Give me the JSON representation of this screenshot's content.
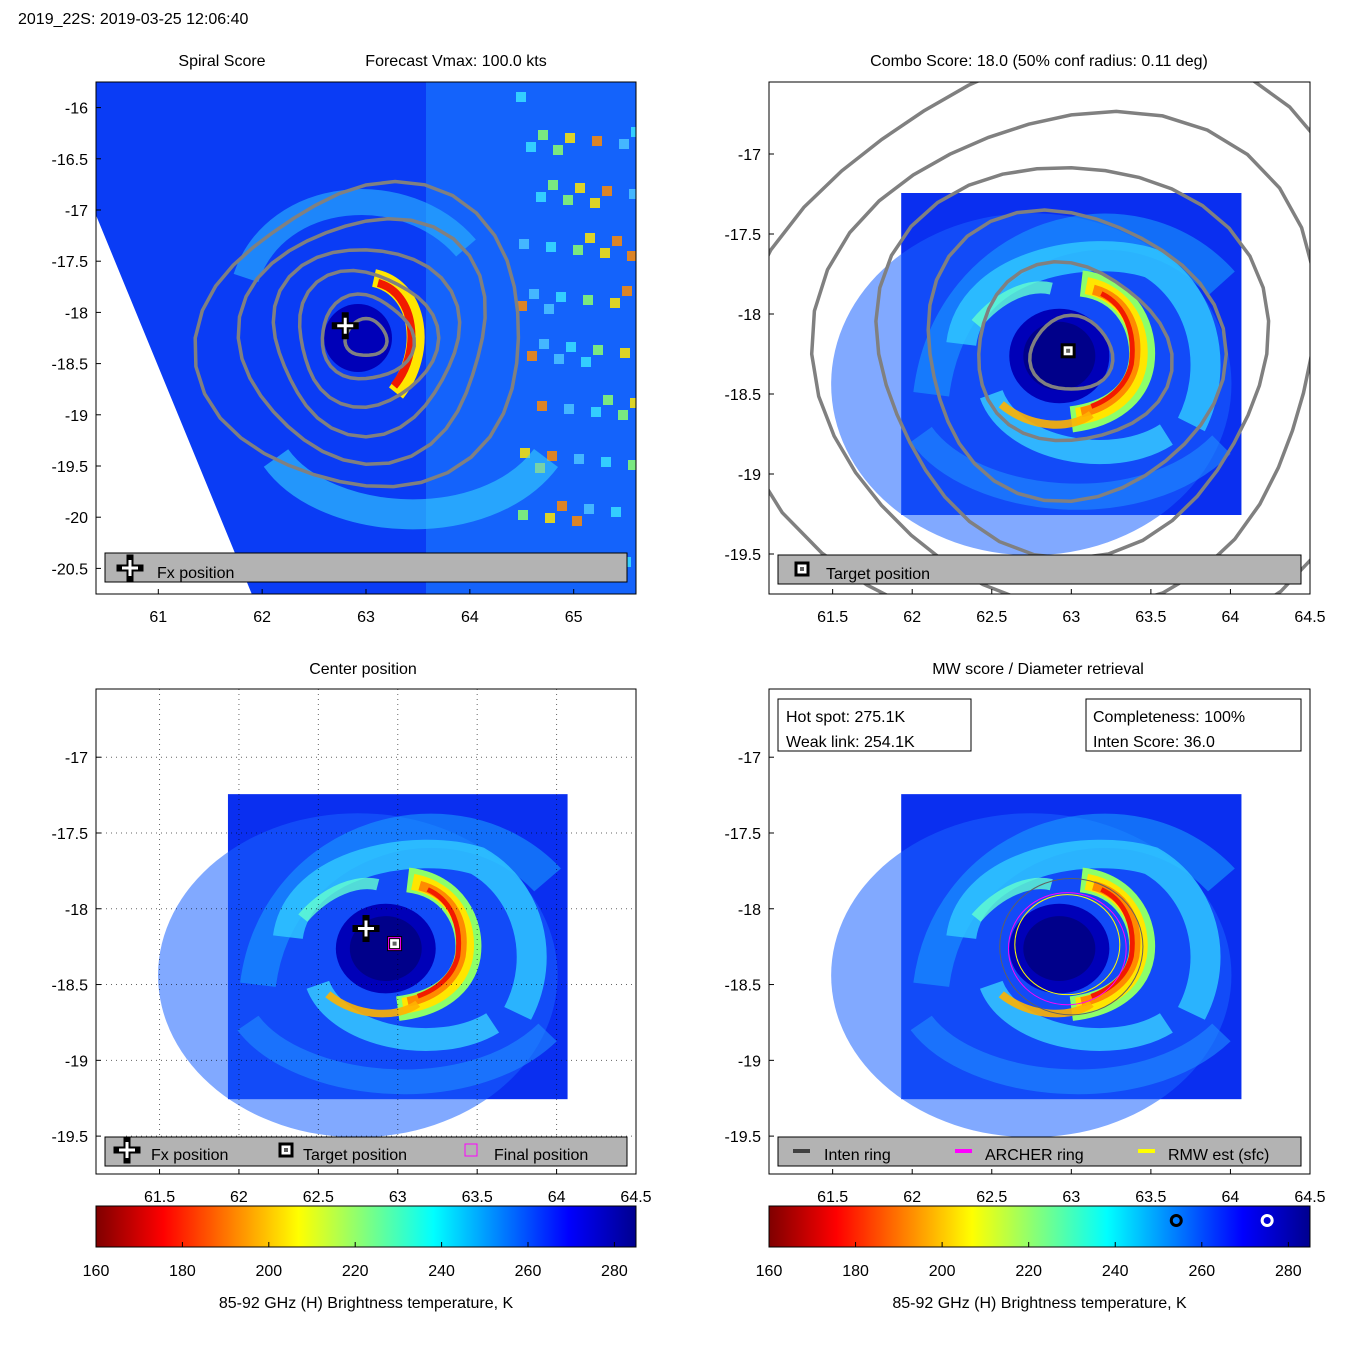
{
  "header": {
    "storm_time": "2019_22S: 2019-03-25 12:06:40"
  },
  "colors": {
    "jet": [
      "#7f0000",
      "#ff0000",
      "#ff7f00",
      "#ffff00",
      "#7fff7f",
      "#00ffff",
      "#007fff",
      "#0000ff",
      "#00008f"
    ],
    "contour": "#808080",
    "legend_bg": "#b3b3b3",
    "archer_ring": "#ff00ff",
    "rmw_ring": "#ffff00",
    "inten_ring": "#404040"
  },
  "panels": {
    "spiral": {
      "title_left": "Spiral Score",
      "title_right": "Forecast Vmax: 100.0 kts",
      "legend": [
        "Fx position"
      ]
    },
    "combo": {
      "title": "Combo Score: 18.0  (50% conf radius: 0.11 deg)",
      "legend": [
        "Target position"
      ]
    },
    "center": {
      "title": "Center position",
      "legend": [
        "Fx position",
        "Target position",
        "Final position"
      ]
    },
    "mw": {
      "title": "MW score / Diameter retrieval",
      "hot_spot": "Hot spot: 275.1K",
      "weak_link": "Weak link: 254.1K",
      "completeness": "Completeness: 100%",
      "inten_score": "Inten Score: 36.0",
      "legend": [
        "Inten ring",
        "ARCHER ring",
        "RMW est (sfc)"
      ]
    }
  },
  "colorbar": {
    "label": "85-92 GHz (H) Brightness temperature, K",
    "ticks": [
      "160",
      "180",
      "200",
      "220",
      "240",
      "260",
      "280"
    ],
    "range": [
      160,
      285
    ],
    "markers": {
      "weak_link_K": 254.1,
      "hot_spot_K": 275.1
    }
  },
  "chart_data": [
    {
      "type": "heatmap",
      "title": "Spiral Score",
      "subtitle": "Forecast Vmax: 100.0 kts",
      "xlim": [
        60.4,
        65.6
      ],
      "ylim": [
        -20.75,
        -15.75
      ],
      "xticks": [
        "61",
        "62",
        "63",
        "64",
        "65"
      ],
      "yticks": [
        "-16",
        "-16.5",
        "-17",
        "-17.5",
        "-18",
        "-18.5",
        "-19",
        "-19.5",
        "-20",
        "-20.5"
      ],
      "eye_lon": 63.0,
      "eye_lat": -18.25,
      "fx_position": {
        "lon": 62.8,
        "lat": -18.13
      },
      "legend": [
        "Fx position"
      ]
    },
    {
      "type": "heatmap",
      "title": "Combo Score: 18.0  (50% conf radius: 0.11 deg)",
      "xlim": [
        61.1,
        64.5
      ],
      "ylim": [
        -19.75,
        -16.55
      ],
      "xticks": [
        "61.5",
        "62",
        "62.5",
        "63",
        "63.5",
        "64",
        "64.5"
      ],
      "yticks": [
        "-17",
        "-17.5",
        "-18",
        "-18.5",
        "-19",
        "-19.5"
      ],
      "eye_lon": 63.0,
      "eye_lat": -18.25,
      "target_position": {
        "lon": 62.98,
        "lat": -18.23
      },
      "legend": [
        "Target position"
      ]
    },
    {
      "type": "heatmap",
      "title": "Center position",
      "xlim": [
        61.1,
        64.5
      ],
      "ylim": [
        -19.75,
        -16.55
      ],
      "xticks": [
        "61.5",
        "62",
        "62.5",
        "63",
        "63.5",
        "64",
        "64.5"
      ],
      "yticks": [
        "-17",
        "-17.5",
        "-18",
        "-18.5",
        "-19",
        "-19.5"
      ],
      "eye_lon": 63.0,
      "eye_lat": -18.25,
      "fx_position": {
        "lon": 62.8,
        "lat": -18.13
      },
      "target_position": {
        "lon": 62.98,
        "lat": -18.23
      },
      "final_position": {
        "lon": 62.98,
        "lat": -18.23
      },
      "legend": [
        "Fx position",
        "Target position",
        "Final position"
      ]
    },
    {
      "type": "heatmap",
      "title": "MW score / Diameter retrieval",
      "xlim": [
        61.1,
        64.5
      ],
      "ylim": [
        -19.75,
        -16.55
      ],
      "xticks": [
        "61.5",
        "62",
        "62.5",
        "63",
        "63.5",
        "64",
        "64.5"
      ],
      "yticks": [
        "-17",
        "-17.5",
        "-18",
        "-18.5",
        "-19",
        "-19.5"
      ],
      "eye_lon": 63.0,
      "eye_lat": -18.25,
      "rings_deg": {
        "inten_ring": 0.45,
        "archer_ring": 0.37,
        "rmw_est": 0.33
      },
      "annotations": [
        "Hot spot: 275.1K",
        "Weak link: 254.1K",
        "Completeness: 100%",
        "Inten Score: 36.0"
      ],
      "legend": [
        "Inten ring",
        "ARCHER ring",
        "RMW est (sfc)"
      ]
    }
  ]
}
